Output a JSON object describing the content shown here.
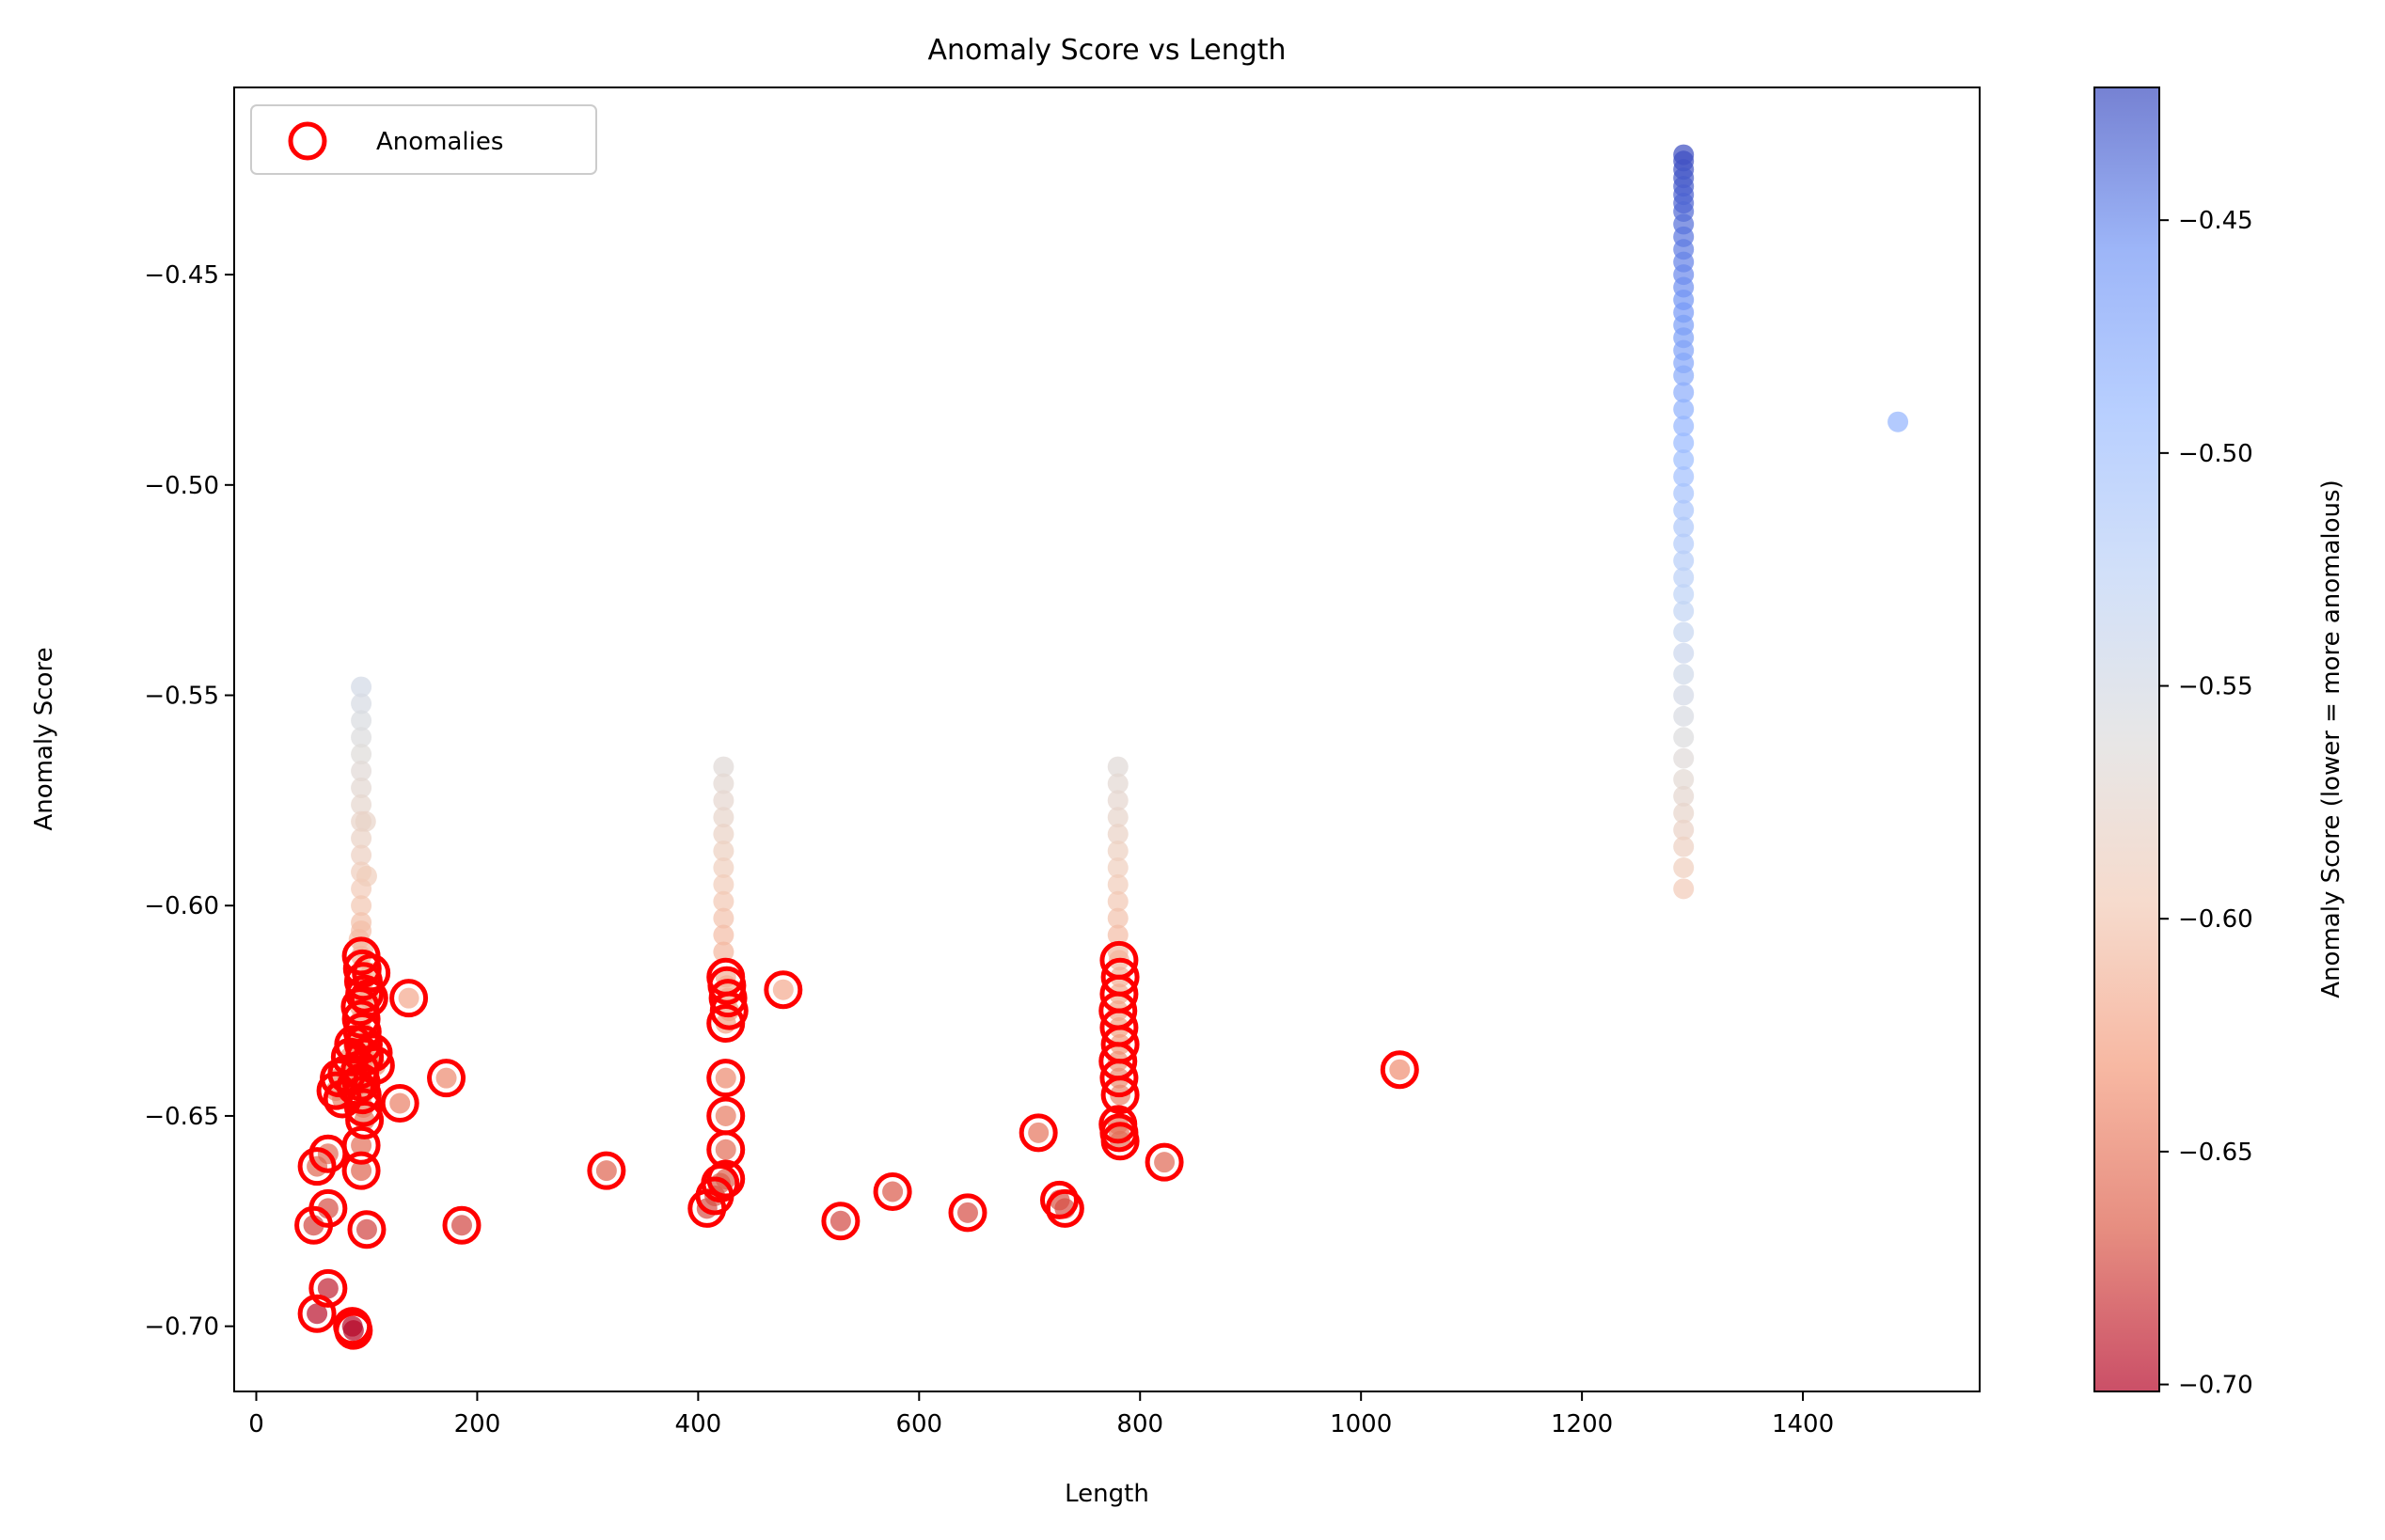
{
  "chart_data": {
    "type": "scatter",
    "title": "Anomaly Score vs Length",
    "xlabel": "Length",
    "ylabel": "Anomaly Score",
    "xlim": [
      -20,
      1560
    ],
    "ylim": [
      -0.7155,
      -0.4055
    ],
    "xticks": [
      0,
      200,
      400,
      600,
      800,
      1000,
      1200,
      1400
    ],
    "yticks": [
      -0.45,
      -0.5,
      -0.55,
      -0.6,
      -0.65,
      -0.7
    ],
    "xtick_labels": [
      "0",
      "200",
      "400",
      "600",
      "800",
      "1000",
      "1200",
      "1400"
    ],
    "ytick_labels": [
      "−0.45",
      "−0.50",
      "−0.55",
      "−0.60",
      "−0.65",
      "−0.70"
    ],
    "grid": false,
    "legend": {
      "placement": "upper-left",
      "entries": [
        "Anomalies"
      ]
    },
    "colorbar": {
      "label": "Anomaly Score (lower = more anomalous)",
      "range": [
        -0.7015,
        -0.4215
      ],
      "ticks": [
        -0.45,
        -0.5,
        -0.55,
        -0.6,
        -0.65,
        -0.7
      ],
      "tick_labels": [
        "−0.45",
        "−0.50",
        "−0.55",
        "−0.60",
        "−0.65",
        "−0.70"
      ],
      "colormap": "coolwarm",
      "colors": [
        "#b40426",
        "#dc5d4a",
        "#f49a7b",
        "#f2cbb7",
        "#dddcdc",
        "#bfd3f6",
        "#9abbff",
        "#7396f5",
        "#3b4cc0"
      ],
      "alpha": 0.7
    },
    "anomaly_marker": {
      "edge_color": "#ff0000"
    },
    "series": [
      {
        "points": [
          [
            1292,
            -0.4215
          ],
          [
            1292,
            -0.423
          ],
          [
            1292,
            -0.425
          ],
          [
            1292,
            -0.427
          ],
          [
            1292,
            -0.429
          ],
          [
            1292,
            -0.431
          ],
          [
            1292,
            -0.433
          ],
          [
            1292,
            -0.435
          ],
          [
            1292,
            -0.438
          ],
          [
            1292,
            -0.441
          ],
          [
            1292,
            -0.444
          ],
          [
            1292,
            -0.447
          ],
          [
            1292,
            -0.45
          ],
          [
            1292,
            -0.453
          ],
          [
            1292,
            -0.456
          ],
          [
            1292,
            -0.459
          ],
          [
            1292,
            -0.462
          ],
          [
            1292,
            -0.465
          ],
          [
            1292,
            -0.468
          ],
          [
            1292,
            -0.471
          ],
          [
            1292,
            -0.474
          ],
          [
            1292,
            -0.478
          ],
          [
            1292,
            -0.482
          ],
          [
            1292,
            -0.486
          ],
          [
            1292,
            -0.49
          ],
          [
            1292,
            -0.494
          ],
          [
            1292,
            -0.498
          ],
          [
            1292,
            -0.502
          ],
          [
            1292,
            -0.506
          ],
          [
            1292,
            -0.51
          ],
          [
            1292,
            -0.514
          ],
          [
            1292,
            -0.518
          ],
          [
            1292,
            -0.522
          ],
          [
            1292,
            -0.526
          ],
          [
            1292,
            -0.53
          ],
          [
            1292,
            -0.535
          ],
          [
            1292,
            -0.54
          ],
          [
            1292,
            -0.545
          ],
          [
            1292,
            -0.55
          ],
          [
            1292,
            -0.555
          ],
          [
            1292,
            -0.56
          ],
          [
            1292,
            -0.565
          ],
          [
            1292,
            -0.57
          ],
          [
            1292,
            -0.574
          ],
          [
            1292,
            -0.578
          ],
          [
            1292,
            -0.582
          ],
          [
            1292,
            -0.586
          ],
          [
            1292,
            -0.591
          ],
          [
            1292,
            -0.596
          ],
          [
            1486,
            -0.485
          ],
          [
            95,
            -0.548
          ],
          [
            95,
            -0.552
          ],
          [
            95,
            -0.556
          ],
          [
            95,
            -0.56
          ],
          [
            95,
            -0.564
          ],
          [
            95,
            -0.568
          ],
          [
            95,
            -0.572
          ],
          [
            95,
            -0.576
          ],
          [
            95,
            -0.58
          ],
          [
            95,
            -0.584
          ],
          [
            95,
            -0.588
          ],
          [
            95,
            -0.592
          ],
          [
            95,
            -0.596
          ],
          [
            95,
            -0.6
          ],
          [
            95,
            -0.604
          ],
          [
            95,
            -0.606
          ],
          [
            93,
            -0.608
          ],
          [
            97,
            -0.61
          ],
          [
            99,
            -0.58
          ],
          [
            100,
            -0.593
          ],
          [
            423,
            -0.567
          ],
          [
            423,
            -0.571
          ],
          [
            423,
            -0.575
          ],
          [
            423,
            -0.579
          ],
          [
            423,
            -0.583
          ],
          [
            423,
            -0.587
          ],
          [
            423,
            -0.591
          ],
          [
            423,
            -0.595
          ],
          [
            423,
            -0.599
          ],
          [
            423,
            -0.603
          ],
          [
            423,
            -0.607
          ],
          [
            423,
            -0.611
          ],
          [
            780,
            -0.567
          ],
          [
            780,
            -0.571
          ],
          [
            780,
            -0.575
          ],
          [
            780,
            -0.579
          ],
          [
            780,
            -0.583
          ],
          [
            780,
            -0.587
          ],
          [
            780,
            -0.591
          ],
          [
            780,
            -0.595
          ],
          [
            780,
            -0.599
          ],
          [
            780,
            -0.603
          ],
          [
            780,
            -0.607
          ],
          [
            780,
            -0.611
          ]
        ]
      },
      {
        "name": "Anomalies",
        "points": [
          [
            95,
            -0.612
          ],
          [
            96,
            -0.615
          ],
          [
            97,
            -0.618
          ],
          [
            98,
            -0.621
          ],
          [
            94,
            -0.624
          ],
          [
            95,
            -0.627
          ],
          [
            96,
            -0.63
          ],
          [
            97,
            -0.633
          ],
          [
            98,
            -0.636
          ],
          [
            94,
            -0.639
          ],
          [
            95,
            -0.642
          ],
          [
            96,
            -0.645
          ],
          [
            97,
            -0.648
          ],
          [
            98,
            -0.651
          ],
          [
            95,
            -0.657
          ],
          [
            95,
            -0.663
          ],
          [
            100,
            -0.677
          ],
          [
            102,
            -0.622
          ],
          [
            104,
            -0.616
          ],
          [
            106,
            -0.635
          ],
          [
            108,
            -0.638
          ],
          [
            88,
            -0.633
          ],
          [
            85,
            -0.636
          ],
          [
            82,
            -0.64
          ],
          [
            75,
            -0.641
          ],
          [
            72,
            -0.644
          ],
          [
            78,
            -0.646
          ],
          [
            90,
            -0.643
          ],
          [
            65,
            -0.659
          ],
          [
            55,
            -0.662
          ],
          [
            65,
            -0.672
          ],
          [
            52,
            -0.676
          ],
          [
            65,
            -0.691
          ],
          [
            55,
            -0.697
          ],
          [
            87,
            -0.7
          ],
          [
            88,
            -0.701
          ],
          [
            138,
            -0.622
          ],
          [
            130,
            -0.647
          ],
          [
            172,
            -0.641
          ],
          [
            186,
            -0.676
          ],
          [
            317,
            -0.663
          ],
          [
            425,
            -0.617
          ],
          [
            426,
            -0.619
          ],
          [
            427,
            -0.622
          ],
          [
            428,
            -0.625
          ],
          [
            425,
            -0.628
          ],
          [
            425,
            -0.641
          ],
          [
            425,
            -0.65
          ],
          [
            425,
            -0.658
          ],
          [
            425,
            -0.665
          ],
          [
            420,
            -0.666
          ],
          [
            415,
            -0.669
          ],
          [
            408,
            -0.672
          ],
          [
            477,
            -0.62
          ],
          [
            529,
            -0.675
          ],
          [
            576,
            -0.668
          ],
          [
            644,
            -0.673
          ],
          [
            708,
            -0.654
          ],
          [
            727,
            -0.67
          ],
          [
            732,
            -0.672
          ],
          [
            781,
            -0.613
          ],
          [
            782,
            -0.617
          ],
          [
            781,
            -0.621
          ],
          [
            780,
            -0.625
          ],
          [
            781,
            -0.629
          ],
          [
            782,
            -0.633
          ],
          [
            780,
            -0.637
          ],
          [
            781,
            -0.641
          ],
          [
            782,
            -0.645
          ],
          [
            780,
            -0.652
          ],
          [
            781,
            -0.654
          ],
          [
            782,
            -0.656
          ],
          [
            822,
            -0.661
          ],
          [
            1035,
            -0.639
          ]
        ]
      }
    ]
  }
}
